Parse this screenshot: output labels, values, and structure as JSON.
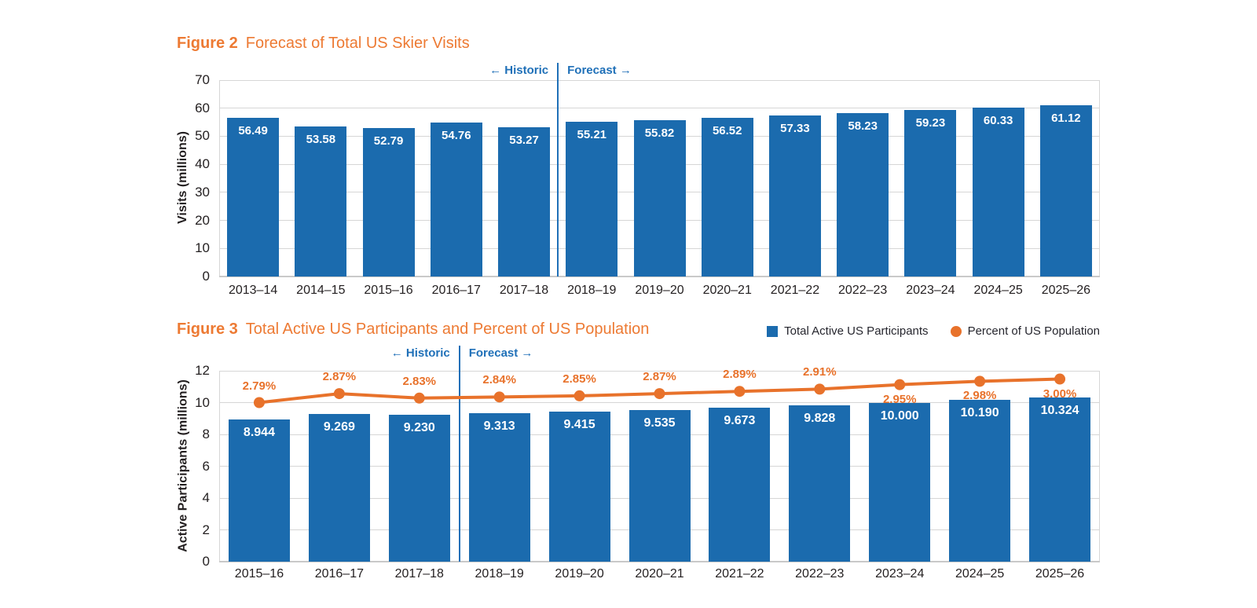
{
  "figure2": {
    "label": "Figure 2",
    "title": "Forecast of Total US Skier Visits",
    "historic": "← Historic",
    "forecast": "Forecast →",
    "ylabel": "Visits (millions)"
  },
  "figure3": {
    "label": "Figure 3",
    "title": "Total Active US Participants and Percent of US Population",
    "historic": "← Historic",
    "forecast": "Forecast →",
    "ylabel": "Active Participants (millions)",
    "legend": [
      {
        "swatch": "square",
        "color": "#1b6bae",
        "label": "Total Active US Participants"
      },
      {
        "swatch": "circle",
        "color": "#e8722b",
        "label": "Percent of US Population"
      }
    ]
  },
  "colors": {
    "bar_blue": "#1b6bae",
    "line_orange": "#e8722b",
    "title_orange": "#ed7a33",
    "annotation_blue": "#1f70b8",
    "grid_gray": "#d6d6d6"
  },
  "chart_data": [
    {
      "id": "skier-visits",
      "type": "bar",
      "title": "Figure 2 Forecast of Total US Skier Visits",
      "xlabel": "",
      "ylabel": "Visits (millions)",
      "ylim": [
        0,
        70
      ],
      "yticks": [
        0,
        10,
        20,
        30,
        40,
        50,
        60,
        70
      ],
      "grid": true,
      "legend_position": "none",
      "categories": [
        "2013–14",
        "2014–15",
        "2015–16",
        "2016–17",
        "2017–18",
        "2018–19",
        "2019–20",
        "2020–21",
        "2021–22",
        "2022–23",
        "2023–24",
        "2024–25",
        "2025–26"
      ],
      "values": [
        56.49,
        53.58,
        52.79,
        54.76,
        53.27,
        55.21,
        55.82,
        56.52,
        57.33,
        58.23,
        59.23,
        60.33,
        61.12
      ],
      "value_labels": [
        "56.49",
        "53.58",
        "52.79",
        "54.76",
        "53.27",
        "55.21",
        "55.82",
        "56.52",
        "57.33",
        "58.23",
        "59.23",
        "60.33",
        "61.12"
      ],
      "divider_after_category": "2017–18",
      "annotations": [
        "← Historic",
        "Forecast →"
      ]
    },
    {
      "id": "active-participants",
      "type": "bar+line",
      "title": "Figure 3 Total Active US Participants and Percent of US Population",
      "xlabel": "",
      "ylabel": "Active Participants (millions)",
      "ylim": [
        0,
        12
      ],
      "yticks": [
        0,
        2,
        4,
        6,
        8,
        10,
        12
      ],
      "grid": true,
      "legend_position": "top-right",
      "categories": [
        "2015–16",
        "2016–17",
        "2017–18",
        "2018–19",
        "2019–20",
        "2020–21",
        "2021–22",
        "2022–23",
        "2023–24",
        "2024–25",
        "2025–26"
      ],
      "series": [
        {
          "name": "Total Active US Participants",
          "type": "bar",
          "color": "#1b6bae",
          "values": [
            8.944,
            9.269,
            9.23,
            9.313,
            9.415,
            9.535,
            9.673,
            9.828,
            10.0,
            10.19,
            10.324
          ],
          "value_labels": [
            "8.944",
            "9.269",
            "9.230",
            "9.313",
            "9.415",
            "9.535",
            "9.673",
            "9.828",
            "10.000",
            "10.190",
            "10.324"
          ]
        },
        {
          "name": "Percent of US Population",
          "type": "line",
          "color": "#e8722b",
          "values": [
            2.79,
            2.87,
            2.83,
            2.84,
            2.85,
            2.87,
            2.89,
            2.91,
            2.95,
            2.98,
            3.0
          ],
          "value_labels": [
            "2.79%",
            "2.87%",
            "2.83%",
            "2.84%",
            "2.85%",
            "2.87%",
            "2.89%",
            "2.91%",
            "2.95%",
            "2.98%",
            "3.00%"
          ],
          "label_below_from_index": 8
        }
      ],
      "divider_after_category": "2017–18",
      "annotations": [
        "← Historic",
        "Forecast →"
      ]
    }
  ]
}
